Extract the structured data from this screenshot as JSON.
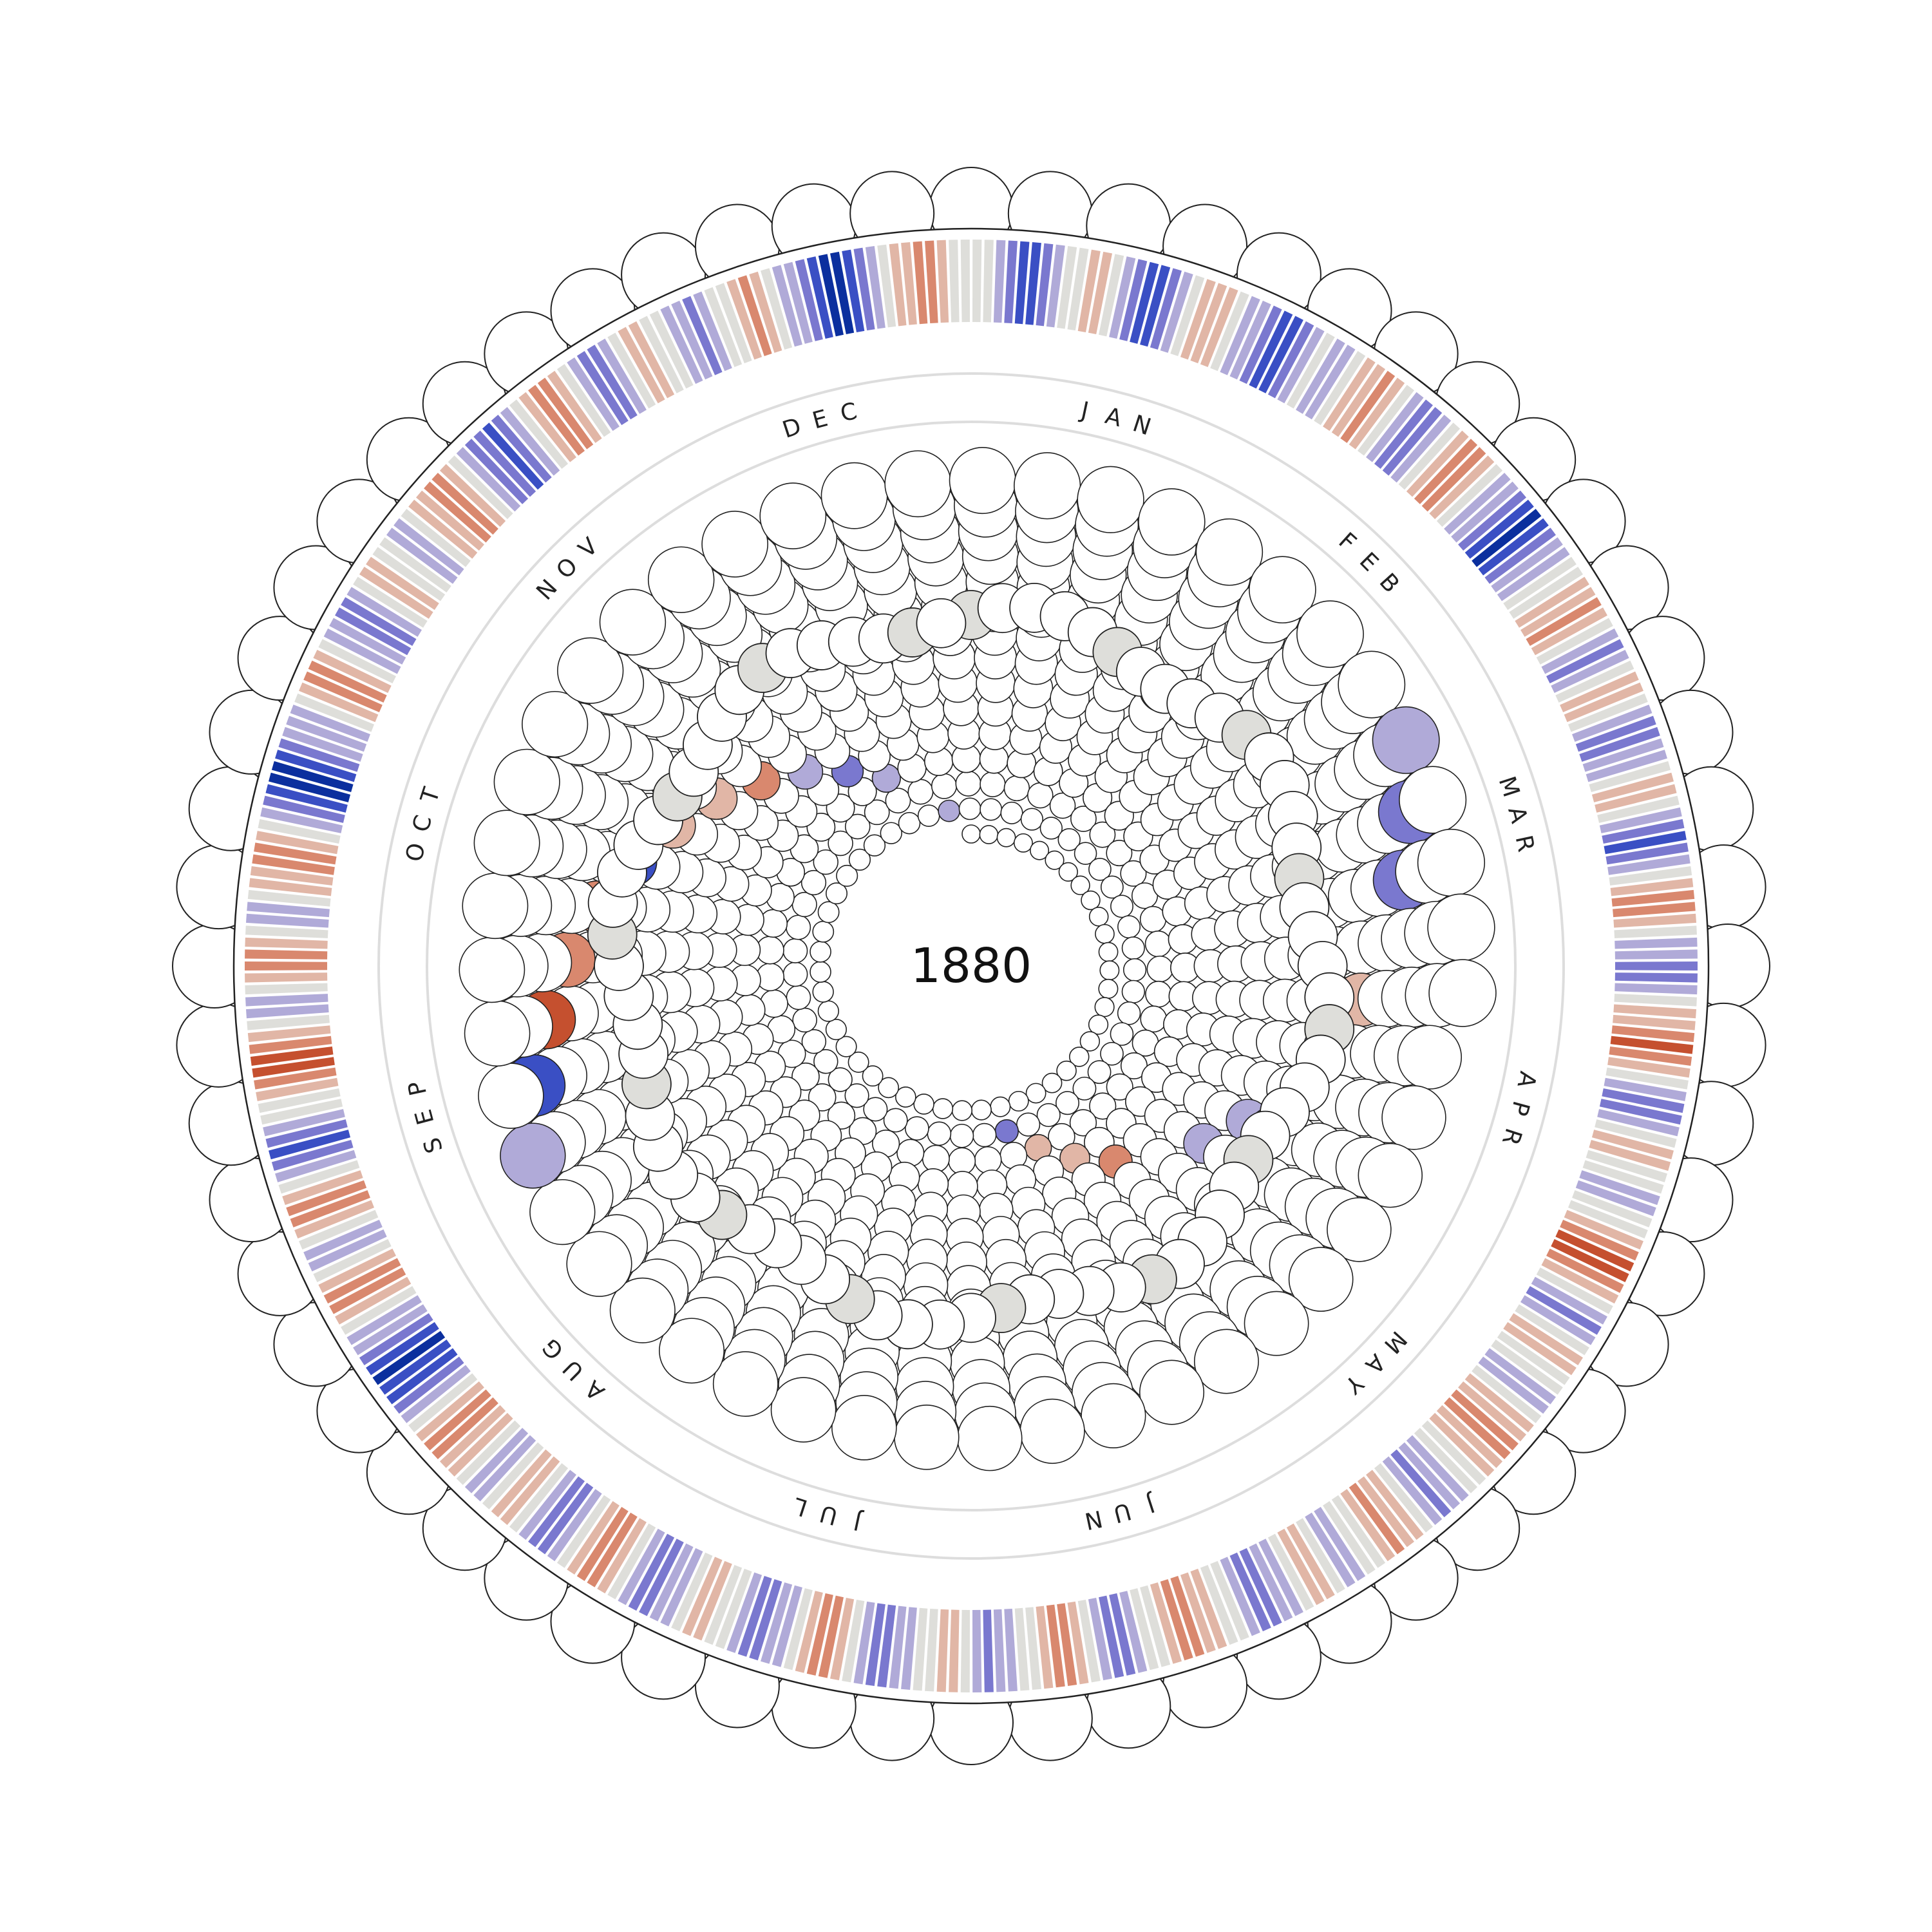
{
  "chart_data": {
    "type": "radial-heatmap",
    "title": "",
    "year": "1880",
    "start_angle_label": "JAN",
    "months": [
      "JAN",
      "FEB",
      "MAR",
      "APR",
      "MAY",
      "JUN",
      "JUL",
      "AUG",
      "SEP",
      "OCT",
      "NOV",
      "DEC"
    ],
    "daily_anomaly_bins": [
      0,
      0,
      -1,
      -2,
      -3,
      -3,
      -2,
      -1,
      0,
      0,
      1,
      1,
      0,
      -1,
      -2,
      -3,
      -3,
      -2,
      -1,
      0,
      1,
      1,
      1,
      0,
      -1,
      -1,
      -2,
      -3,
      -3,
      -2,
      -1,
      0,
      -1,
      -1,
      0,
      1,
      1,
      2,
      1,
      0,
      -1,
      -2,
      -2,
      -1,
      0,
      1,
      2,
      2,
      1,
      0,
      -1,
      -1,
      -2,
      -3,
      -4,
      -3,
      -2,
      -1,
      -1,
      0,
      0,
      1,
      1,
      2,
      1,
      0,
      -1,
      -2,
      -1,
      0,
      1,
      1,
      0,
      -1,
      -2,
      -2,
      -1,
      -1,
      0,
      1,
      1,
      0,
      -1,
      -2,
      -3,
      -2,
      -1,
      0,
      1,
      2,
      2,
      1,
      0,
      -1,
      -1,
      -2,
      -2,
      -1,
      0,
      1,
      1,
      2,
      3,
      2,
      1,
      0,
      -1,
      -2,
      -2,
      -1,
      0,
      1,
      1,
      0,
      0,
      -1,
      -1,
      0,
      0,
      1,
      2,
      3,
      3,
      2,
      1,
      0,
      -1,
      -2,
      -1,
      0,
      1,
      1,
      0,
      0,
      -1,
      -1,
      0,
      1,
      1,
      2,
      2,
      1,
      1,
      0,
      0,
      -1,
      -1,
      -2,
      -1,
      0,
      1,
      1,
      2,
      1,
      0,
      0,
      -1,
      -1,
      0,
      1,
      1,
      0,
      -1,
      -1,
      -2,
      -2,
      -1,
      0,
      0,
      1,
      1,
      2,
      2,
      1,
      0,
      0,
      -1,
      -2,
      -2,
      -1,
      0,
      1,
      2,
      2,
      1,
      0,
      0,
      -1,
      -1,
      -2,
      -1,
      0,
      1,
      1,
      0,
      0,
      -1,
      -1,
      -2,
      -2,
      -1,
      0,
      1,
      2,
      2,
      1,
      0,
      -1,
      -1,
      -2,
      -2,
      -1,
      0,
      0,
      1,
      1,
      0,
      -1,
      -1,
      -2,
      -2,
      -1,
      0,
      1,
      2,
      2,
      1,
      0,
      -1,
      -2,
      -2,
      -1,
      0,
      1,
      1,
      0,
      -1,
      -1,
      0,
      1,
      1,
      2,
      2,
      1,
      0,
      -1,
      -2,
      -3,
      -3,
      -4,
      -3,
      -2,
      -1,
      -1,
      0,
      1,
      2,
      2,
      1,
      0,
      -1,
      -1,
      0,
      1,
      2,
      2,
      1,
      0,
      -1,
      -2,
      -3,
      -2,
      -1,
      0,
      0,
      1,
      2,
      3,
      3,
      2,
      1,
      0,
      -1,
      -1,
      0,
      1,
      2,
      2,
      1,
      0,
      -1,
      -1,
      0,
      1,
      1,
      2,
      2,
      1,
      0,
      -1,
      -2,
      -3,
      -4,
      -4,
      -3,
      -2,
      -1,
      -1,
      -1,
      0,
      1,
      2,
      2,
      1,
      0,
      -1,
      -1,
      -2,
      -2,
      -1,
      0,
      1,
      1,
      0,
      0,
      -1,
      -1,
      0,
      1,
      1,
      2,
      2,
      1,
      0,
      -1,
      -2,
      -2,
      -3,
      -2,
      -1,
      0,
      1,
      2,
      2,
      1,
      0,
      -1,
      -2,
      -2,
      -1,
      0,
      1,
      1,
      0,
      0,
      -1,
      -1,
      -2,
      -1,
      0,
      0,
      1,
      2,
      1,
      0,
      -1,
      -1,
      -2,
      -3,
      -4,
      -4,
      -3,
      -2,
      -1,
      0,
      1,
      1,
      2,
      2,
      1,
      0,
      0
    ],
    "color_scale": {
      "-4": "#0b2f9e",
      "-3": "#3a4fc4",
      "-2": "#7a78cf",
      "-1": "#b0aad8",
      "0": "#dededa",
      "1": "#e1b6a6",
      "2": "#d9886e",
      "3": "#c5502f"
    },
    "grid": false,
    "legend": "none"
  }
}
